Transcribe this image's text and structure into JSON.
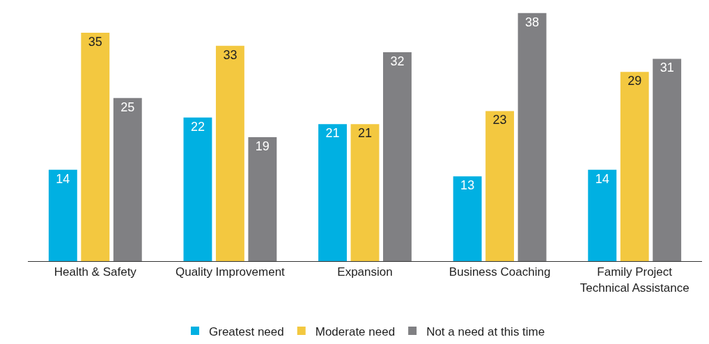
{
  "chart_data": {
    "type": "bar",
    "categories": [
      "Health & Safety",
      "Quality Improvement",
      "Expansion",
      "Business Coaching",
      "Family Project\nTechnical Assistance"
    ],
    "series": [
      {
        "name": "Greatest need",
        "color": "#00b0e2",
        "values": [
          14,
          22,
          21,
          13,
          14
        ]
      },
      {
        "name": "Moderate need",
        "color": "#f3c840",
        "values": [
          35,
          33,
          21,
          23,
          29
        ]
      },
      {
        "name": "Not a need at this time",
        "color": "#808083",
        "values": [
          25,
          19,
          32,
          38,
          31
        ]
      }
    ],
    "data_labels": true,
    "legend": "bottom"
  }
}
